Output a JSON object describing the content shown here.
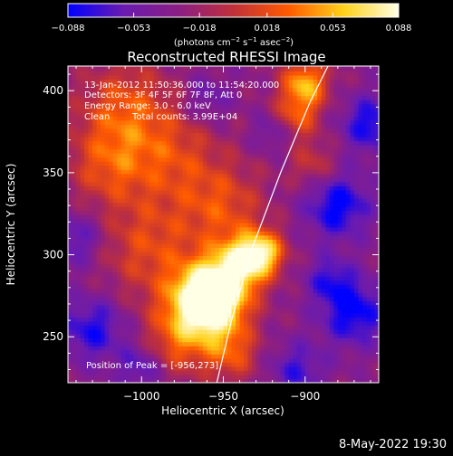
{
  "colorbar": {
    "ticks": [
      "−0.088",
      "−0.053",
      "−0.018",
      "0.018",
      "0.053",
      "0.088"
    ],
    "tick_values": [
      -0.088,
      -0.053,
      -0.018,
      0.018,
      0.053,
      0.088
    ],
    "range": [
      -0.088,
      0.088
    ],
    "units_label": "(photons cm",
    "units_exp1": "−2",
    "units_mid1": " s",
    "units_exp2": "−1",
    "units_mid2": " asec",
    "units_exp3": "−2",
    "units_end": ")",
    "colors": [
      "#0000ff",
      "#6a1bb0",
      "#8b1e84",
      "#c0303a",
      "#ff5a00",
      "#ffd21a",
      "#ffffe6"
    ]
  },
  "chart_data": {
    "type": "heatmap",
    "title": "Reconstructed RHESSI Image",
    "xlabel": "Heliocentric X (arcsec)",
    "ylabel": "Heliocentric Y (arcsec)",
    "xlim": [
      -1045,
      -855
    ],
    "ylim": [
      222,
      415
    ],
    "x_ticks": [
      -1000,
      -950,
      -900
    ],
    "x_tick_labels": [
      "−1000",
      "−950",
      "−900"
    ],
    "y_ticks": [
      250,
      300,
      350,
      400
    ],
    "y_tick_labels": [
      "250",
      "300",
      "350",
      "400"
    ],
    "peak": {
      "x": -956,
      "y": 273
    },
    "limb_curve": [
      [
        -954,
        222
      ],
      [
        -945,
        260
      ],
      [
        -932,
        305
      ],
      [
        -915,
        350
      ],
      [
        -897,
        393
      ],
      [
        -886,
        415
      ]
    ],
    "annotations": {
      "time": "13-Jan-2012 11:50:36.000 to 11:54:20.000",
      "detectors": "Detectors: 3F 4F 5F 6F 7F 8F, Att 0",
      "energy": "Energy Range: 3.0 - 6.0 keV",
      "clean_a": "Clean",
      "clean_b": "Total counts: 3.99E+04",
      "peak_label": "Position of Peak = [-956,273]"
    },
    "grid": false,
    "blobs": [
      {
        "x": -957,
        "y": 275,
        "s": 14,
        "a": 0.13
      },
      {
        "x": -938,
        "y": 296,
        "s": 12,
        "a": 0.09
      },
      {
        "x": -925,
        "y": 302,
        "s": 9,
        "a": 0.07
      },
      {
        "x": -965,
        "y": 265,
        "s": 18,
        "a": 0.06
      },
      {
        "x": -995,
        "y": 305,
        "s": 22,
        "a": 0.045
      },
      {
        "x": -1020,
        "y": 355,
        "s": 18,
        "a": 0.045
      },
      {
        "x": -1010,
        "y": 390,
        "s": 20,
        "a": 0.05
      },
      {
        "x": -980,
        "y": 360,
        "s": 20,
        "a": 0.04
      },
      {
        "x": -900,
        "y": 405,
        "s": 10,
        "a": 0.08
      },
      {
        "x": -905,
        "y": 385,
        "s": 10,
        "a": 0.05
      },
      {
        "x": -895,
        "y": 355,
        "s": 10,
        "a": 0.035
      },
      {
        "x": -950,
        "y": 330,
        "s": 18,
        "a": 0.045
      },
      {
        "x": -945,
        "y": 240,
        "s": 12,
        "a": 0.045
      },
      {
        "x": -980,
        "y": 245,
        "s": 14,
        "a": 0.035
      },
      {
        "x": -1040,
        "y": 310,
        "s": 12,
        "a": -0.04
      },
      {
        "x": -1030,
        "y": 255,
        "s": 14,
        "a": -0.05
      },
      {
        "x": -880,
        "y": 330,
        "s": 14,
        "a": -0.06
      },
      {
        "x": -870,
        "y": 265,
        "s": 14,
        "a": -0.06
      },
      {
        "x": -885,
        "y": 285,
        "s": 10,
        "a": -0.04
      },
      {
        "x": -860,
        "y": 380,
        "s": 12,
        "a": -0.055
      },
      {
        "x": -1000,
        "y": 232,
        "s": 10,
        "a": -0.04
      },
      {
        "x": -905,
        "y": 230,
        "s": 12,
        "a": -0.04
      },
      {
        "x": -960,
        "y": 395,
        "s": 10,
        "a": -0.03
      },
      {
        "x": -920,
        "y": 375,
        "s": 8,
        "a": -0.03
      }
    ]
  },
  "footer": {
    "timestamp": "8-May-2022 19:30"
  }
}
